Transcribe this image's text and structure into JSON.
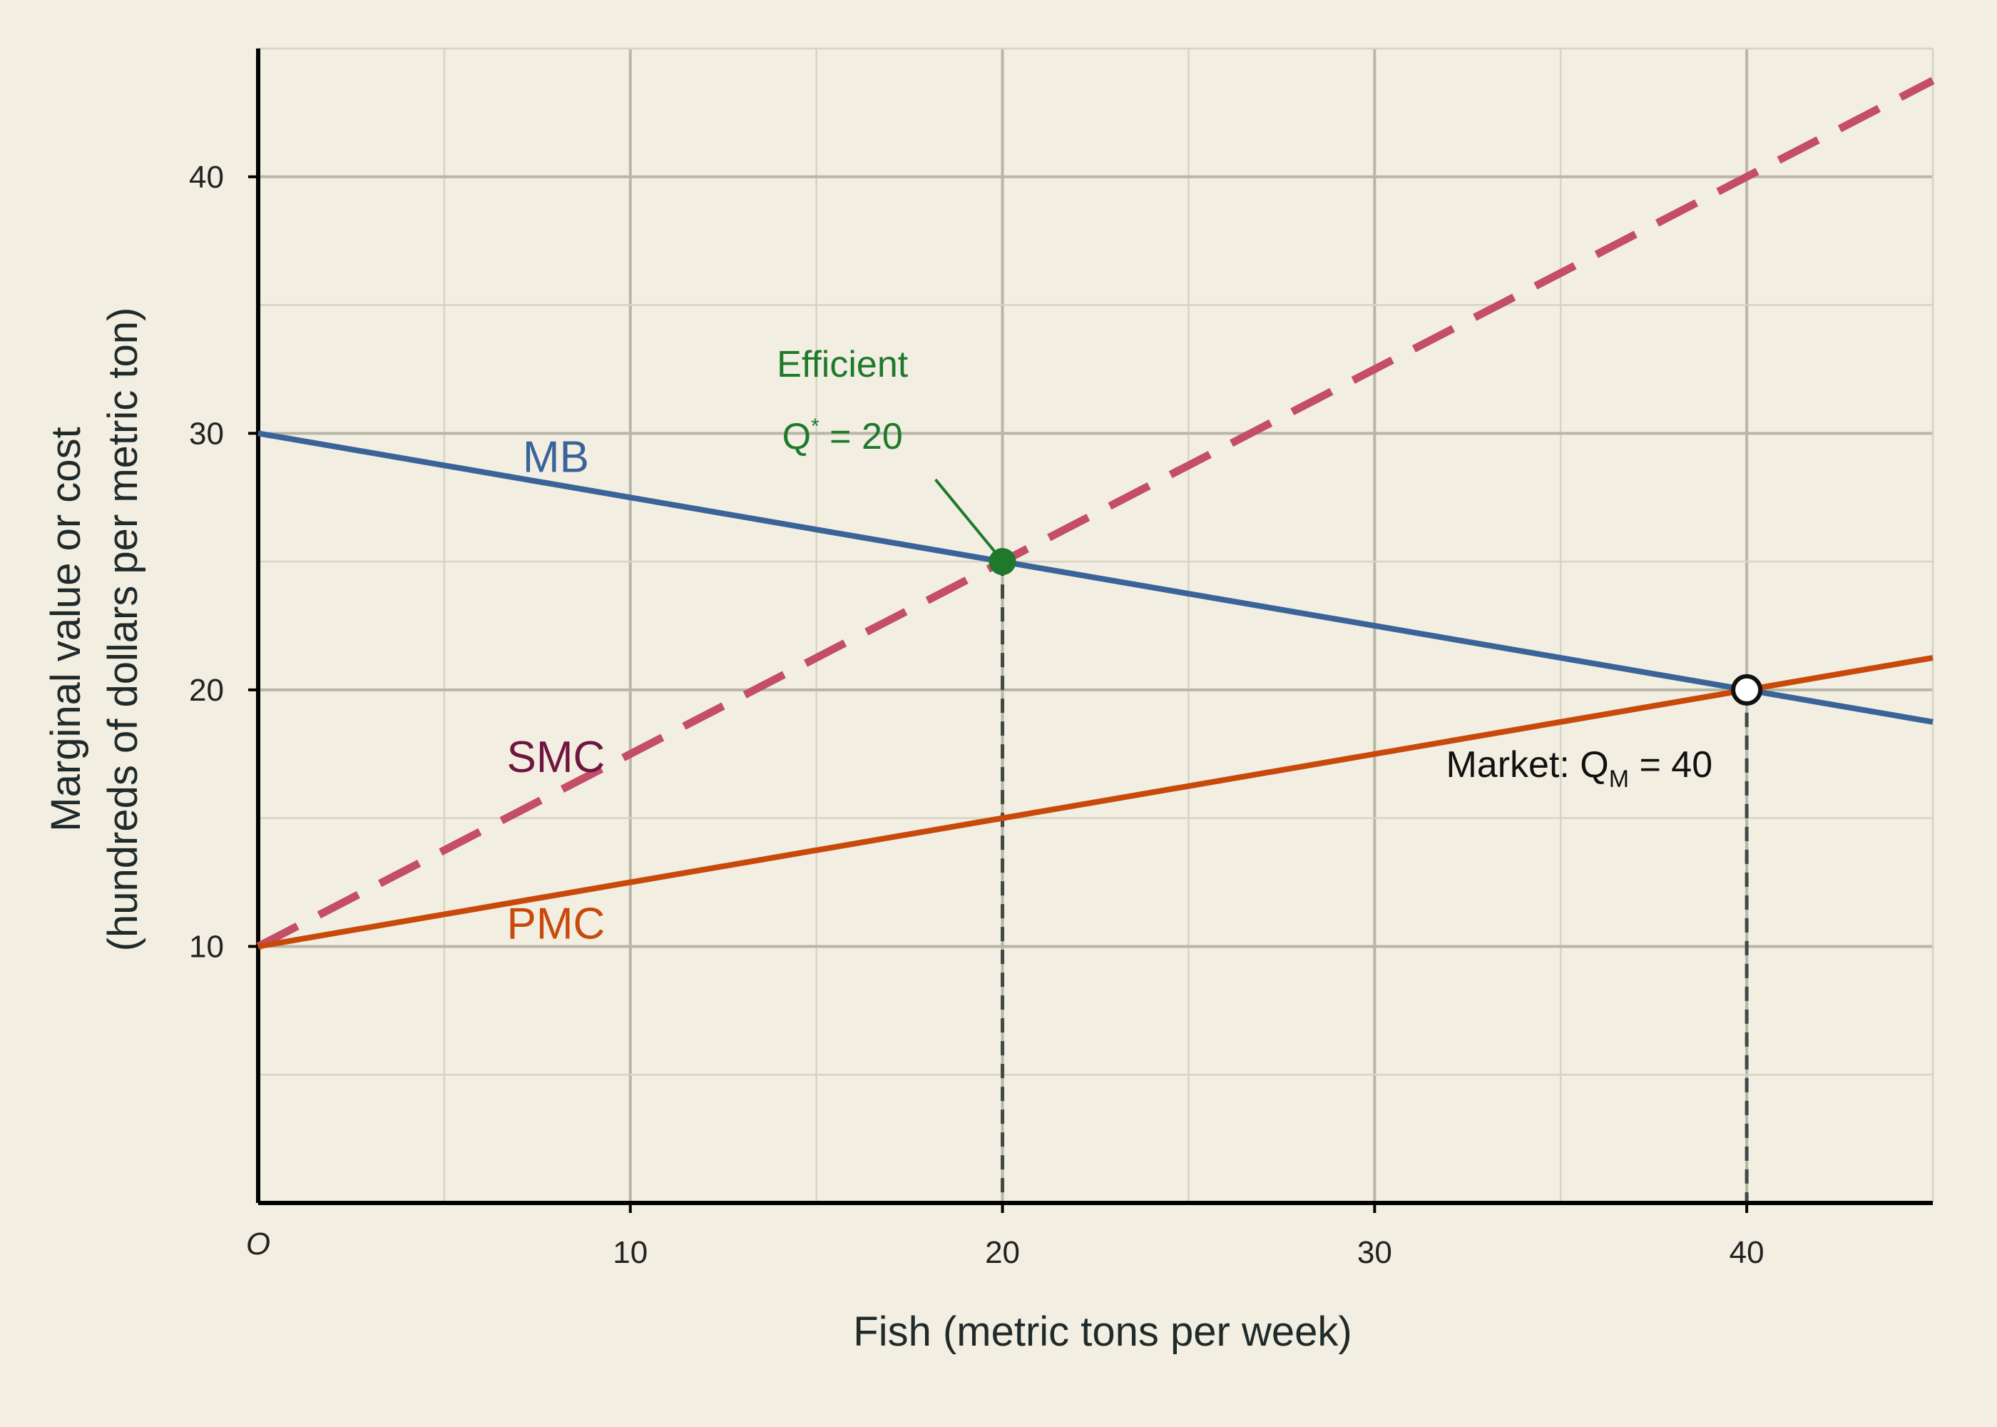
{
  "chart_data": {
    "type": "line",
    "xlabel": "Fish (metric tons per week)",
    "ylabel": [
      "Marginal value or cost",
      "(hundreds of dollars per metric ton)"
    ],
    "origin_label": "O",
    "xlim": [
      0,
      45
    ],
    "ylim": [
      0,
      45
    ],
    "x_ticks": [
      10,
      20,
      30,
      40
    ],
    "y_ticks": [
      10,
      20,
      30,
      40
    ],
    "minor_step": 5,
    "grid": true,
    "series": [
      {
        "name": "MB",
        "style": "solid",
        "color": "#3a6499",
        "x": [
          0,
          45
        ],
        "y": [
          30,
          18.75
        ],
        "label_at": [
          8,
          28.5
        ]
      },
      {
        "name": "SMC",
        "style": "dashed",
        "color": "#c44e66",
        "label_color": "#6e1640",
        "x": [
          0,
          45
        ],
        "y": [
          10,
          43.75
        ],
        "label_at": [
          8,
          16.8
        ]
      },
      {
        "name": "PMC",
        "style": "solid",
        "color": "#c9490b",
        "x": [
          0,
          45
        ],
        "y": [
          10,
          21.25
        ],
        "label_at": [
          8,
          10.3
        ]
      }
    ],
    "points": [
      {
        "name": "efficient",
        "x": 20,
        "y": 25,
        "fill": "#1e7a2a",
        "stroke": "#1e7a2a"
      },
      {
        "name": "market",
        "x": 40,
        "y": 20,
        "fill": "#ffffff",
        "stroke": "#111111"
      }
    ],
    "annotations": {
      "efficient": {
        "title": "Efficient",
        "q": "Q",
        "sup": "*",
        "eq": " = 20",
        "color": "#1e7a2a",
        "title_at": [
          15.7,
          32.2
        ],
        "eq_at": [
          15.7,
          29.4
        ],
        "arrow_from": [
          18.2,
          28.2
        ],
        "arrow_to": [
          19.9,
          25.2
        ]
      },
      "market": {
        "prefix": "Market: Q",
        "sub": "M",
        "eq": " = 40",
        "color": "#111111",
        "at": [
          35.5,
          16.6
        ]
      }
    },
    "drop_lines_x": [
      20,
      40
    ]
  }
}
